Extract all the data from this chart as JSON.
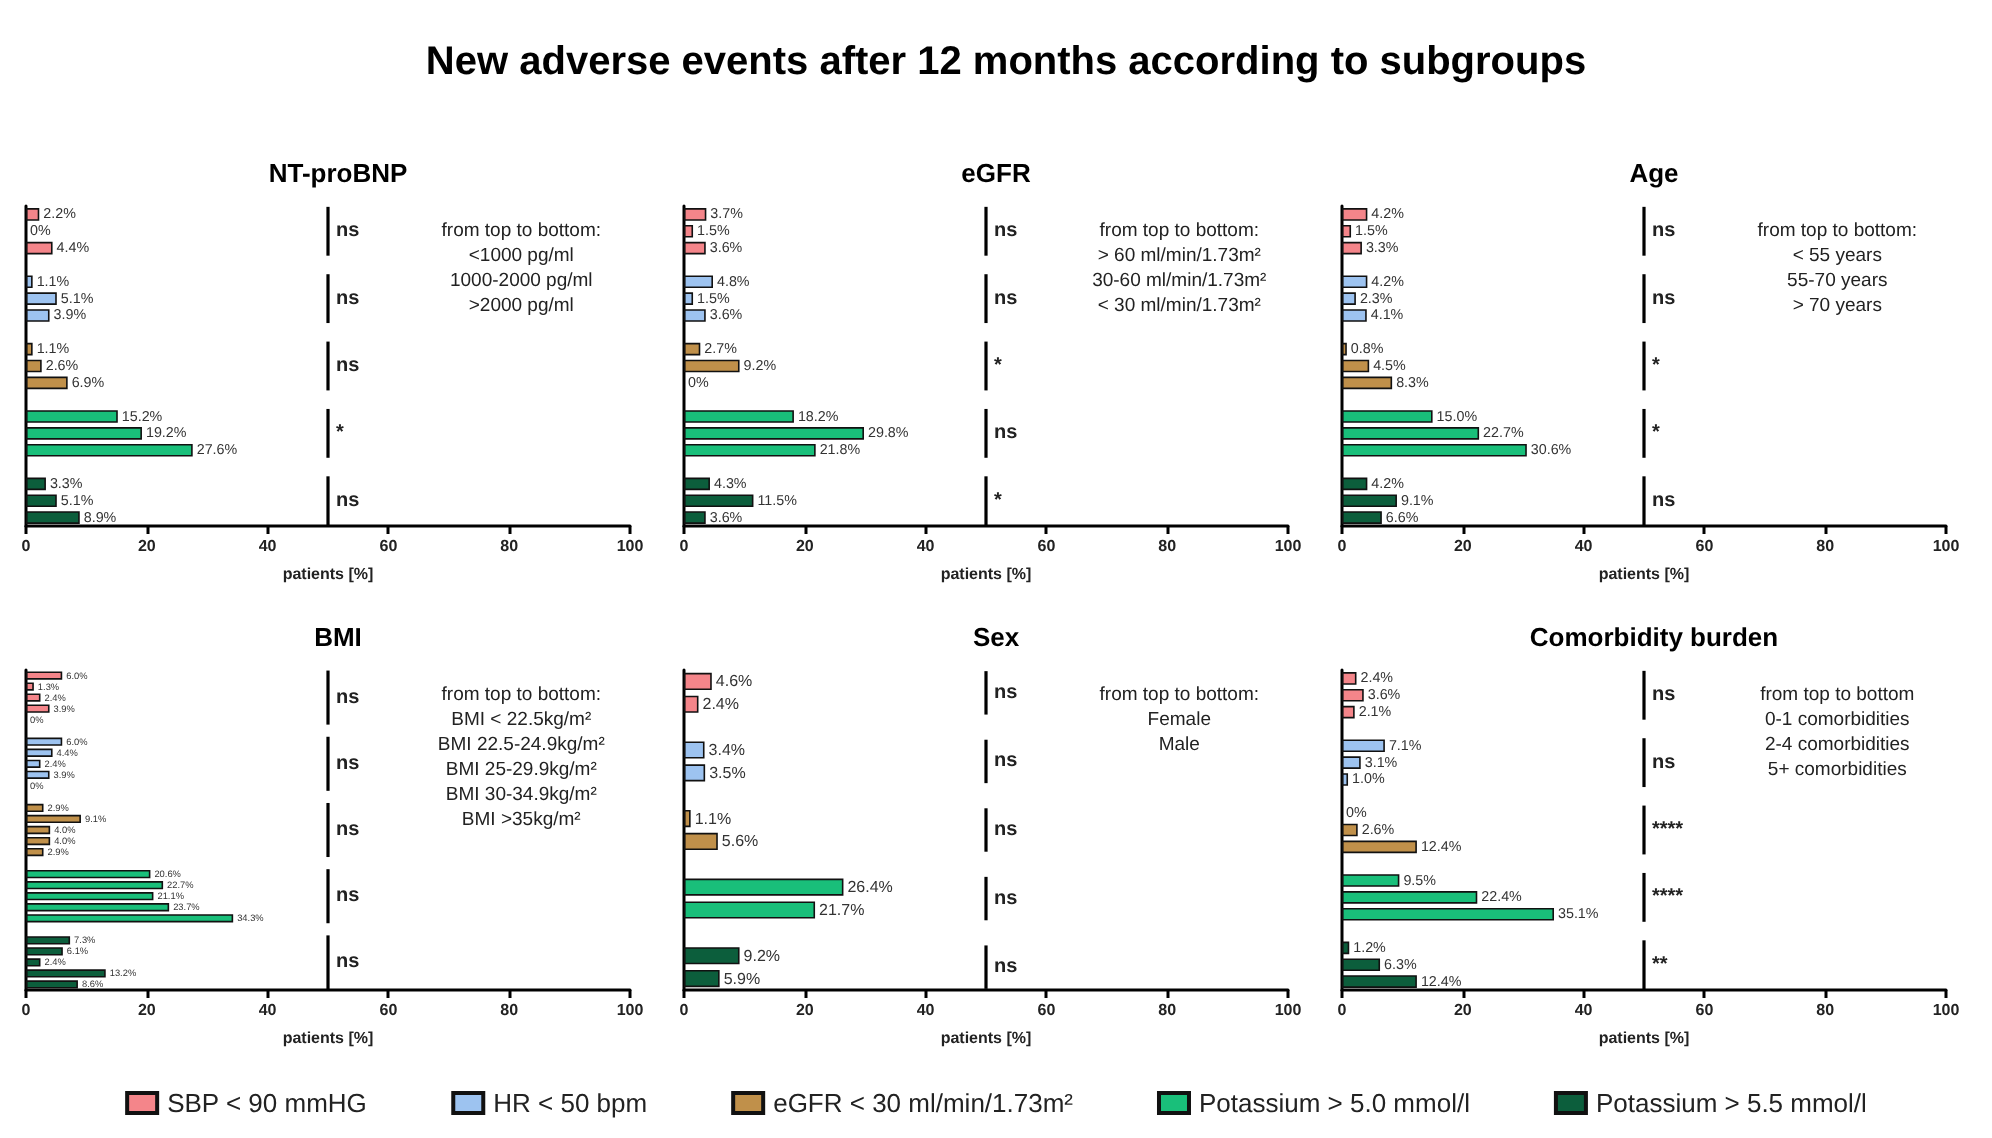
{
  "chart_data": [
    {
      "type": "bar",
      "orientation": "horizontal",
      "title": "New adverse events after 12 months according to subgroups",
      "subtitle": "NT-proBNP",
      "xlabel": "patients [%]",
      "xlim": [
        0,
        100
      ],
      "xticks": [
        0,
        20,
        40,
        60,
        80,
        100
      ],
      "tick_labels": "x",
      "categories": [
        null,
        null,
        null,
        null,
        null,
        null,
        null,
        null,
        null,
        null,
        null,
        null,
        null,
        null,
        null,
        null,
        null,
        null,
        null
      ],
      "series": [
        {
          "color": "#f4858a",
          "values": [
            2.2,
            0,
            4.4,
            null,
            null,
            null,
            null,
            null,
            null,
            null,
            null,
            null,
            null,
            null,
            null,
            null,
            null,
            null,
            null
          ],
          "value_labels": [
            "2.2%",
            "0%",
            "4.4%",
            null,
            null,
            null,
            null,
            null,
            null,
            null,
            null,
            null,
            null,
            null,
            null,
            null,
            null,
            null,
            null
          ]
        },
        {
          "color": "#9dc3f0",
          "values": [
            null,
            null,
            null,
            null,
            1.1,
            5.1,
            3.9,
            null,
            null,
            null,
            null,
            null,
            null,
            null,
            null,
            null,
            null,
            null,
            null
          ],
          "value_labels": [
            null,
            null,
            null,
            null,
            "1.1%",
            "5.1%",
            "3.9%",
            null,
            null,
            null,
            null,
            null,
            null,
            null,
            null,
            null,
            null,
            null,
            null
          ]
        },
        {
          "color": "#c0904a",
          "values": [
            null,
            null,
            null,
            null,
            null,
            null,
            null,
            null,
            1.1,
            2.6,
            6.9,
            null,
            null,
            null,
            null,
            null,
            null,
            null,
            null
          ],
          "value_labels": [
            null,
            null,
            null,
            null,
            null,
            null,
            null,
            null,
            "1.1%",
            "2.6%",
            "6.9%",
            null,
            null,
            null,
            null,
            null,
            null,
            null,
            null
          ]
        },
        {
          "color": "#19bf7a",
          "values": [
            null,
            null,
            null,
            null,
            null,
            null,
            null,
            null,
            null,
            null,
            null,
            null,
            15.2,
            19.2,
            27.6,
            null,
            null,
            null,
            null
          ],
          "value_labels": [
            null,
            null,
            null,
            null,
            null,
            null,
            null,
            null,
            null,
            null,
            null,
            null,
            "15.2%",
            "19.2%",
            "27.6%",
            null,
            null,
            null,
            null
          ]
        },
        {
          "color": "#0c5e3c",
          "values": [
            null,
            null,
            null,
            null,
            null,
            null,
            null,
            null,
            null,
            null,
            null,
            null,
            null,
            null,
            null,
            null,
            3.3,
            5.1,
            8.9
          ],
          "value_labels": [
            null,
            null,
            null,
            null,
            null,
            null,
            null,
            null,
            null,
            null,
            null,
            null,
            null,
            null,
            null,
            null,
            "3.3%",
            "5.1%",
            "8.9%"
          ]
        }
      ],
      "annotations": [
        "from top to bottom:\n<1000 pg/ml\n1000-2000 pg/ml\n>2000 pg/ml",
        "ns",
        "ns",
        "ns",
        "*",
        "ns"
      ]
    },
    {
      "type": "bar",
      "orientation": "horizontal",
      "title": "eGFR",
      "xlabel": "patients [%]",
      "xlim": [
        0,
        100
      ],
      "xticks": [
        0,
        20,
        40,
        60,
        80,
        100
      ],
      "tick_labels": "x",
      "categories": [
        null,
        null,
        null,
        null,
        null,
        null,
        null,
        null,
        null,
        null,
        null,
        null,
        null,
        null,
        null,
        null,
        null,
        null,
        null
      ],
      "series": [
        {
          "color": "#f4858a",
          "values": [
            3.7,
            1.5,
            3.6,
            null,
            null,
            null,
            null,
            null,
            null,
            null,
            null,
            null,
            null,
            null,
            null,
            null,
            null,
            null,
            null
          ],
          "value_labels": [
            "3.7%",
            "1.5%",
            "3.6%",
            null,
            null,
            null,
            null,
            null,
            null,
            null,
            null,
            null,
            null,
            null,
            null,
            null,
            null,
            null,
            null
          ]
        },
        {
          "color": "#9dc3f0",
          "values": [
            null,
            null,
            null,
            null,
            4.8,
            1.5,
            3.6,
            null,
            null,
            null,
            null,
            null,
            null,
            null,
            null,
            null,
            null,
            null,
            null
          ],
          "value_labels": [
            null,
            null,
            null,
            null,
            "4.8%",
            "1.5%",
            "3.6%",
            null,
            null,
            null,
            null,
            null,
            null,
            null,
            null,
            null,
            null,
            null,
            null
          ]
        },
        {
          "color": "#c0904a",
          "values": [
            null,
            null,
            null,
            null,
            null,
            null,
            null,
            null,
            2.7,
            9.2,
            0,
            null,
            null,
            null,
            null,
            null,
            null,
            null,
            null
          ],
          "value_labels": [
            null,
            null,
            null,
            null,
            null,
            null,
            null,
            null,
            "2.7%",
            "9.2%",
            "0%",
            null,
            null,
            null,
            null,
            null,
            null,
            null,
            null
          ]
        },
        {
          "color": "#19bf7a",
          "values": [
            null,
            null,
            null,
            null,
            null,
            null,
            null,
            null,
            null,
            null,
            null,
            null,
            18.2,
            29.8,
            21.8,
            null,
            null,
            null,
            null
          ],
          "value_labels": [
            null,
            null,
            null,
            null,
            null,
            null,
            null,
            null,
            null,
            null,
            null,
            null,
            "18.2%",
            "29.8%",
            "21.8%",
            null,
            null,
            null,
            null
          ]
        },
        {
          "color": "#0c5e3c",
          "values": [
            null,
            null,
            null,
            null,
            null,
            null,
            null,
            null,
            null,
            null,
            null,
            null,
            null,
            null,
            null,
            null,
            4.3,
            11.5,
            3.6
          ],
          "value_labels": [
            null,
            null,
            null,
            null,
            null,
            null,
            null,
            null,
            null,
            null,
            null,
            null,
            null,
            null,
            null,
            null,
            "4.3%",
            "11.5%",
            "3.6%"
          ]
        }
      ],
      "annotations": [
        "from top to bottom:\n> 60 ml/min/1.73m²\n30-60 ml/min/1.73m²\n< 30 ml/min/1.73m²",
        "ns",
        "ns",
        "*",
        "ns",
        "*"
      ]
    },
    {
      "type": "bar",
      "orientation": "horizontal",
      "title": "Age",
      "xlabel": "patients [%]",
      "xlim": [
        0,
        100
      ],
      "xticks": [
        0,
        20,
        40,
        60,
        80,
        100
      ],
      "tick_labels": "x",
      "categories": [
        null,
        null,
        null,
        null,
        null,
        null,
        null,
        null,
        null,
        null,
        null,
        null,
        null,
        null,
        null,
        null,
        null,
        null,
        null
      ],
      "series": [
        {
          "color": "#f4858a",
          "values": [
            4.2,
            1.5,
            3.3,
            null,
            null,
            null,
            null,
            null,
            null,
            null,
            null,
            null,
            null,
            null,
            null,
            null,
            null,
            null,
            null
          ],
          "value_labels": [
            "4.2%",
            "1.5%",
            "3.3%",
            null,
            null,
            null,
            null,
            null,
            null,
            null,
            null,
            null,
            null,
            null,
            null,
            null,
            null,
            null,
            null
          ]
        },
        {
          "color": "#9dc3f0",
          "values": [
            null,
            null,
            null,
            null,
            4.2,
            2.3,
            4.1,
            null,
            null,
            null,
            null,
            null,
            null,
            null,
            null,
            null,
            null,
            null,
            null
          ],
          "value_labels": [
            null,
            null,
            null,
            null,
            "4.2%",
            "2.3%",
            "4.1%",
            null,
            null,
            null,
            null,
            null,
            null,
            null,
            null,
            null,
            null,
            null,
            null
          ]
        },
        {
          "color": "#c0904a",
          "values": [
            null,
            null,
            null,
            null,
            null,
            null,
            null,
            null,
            0.8,
            4.5,
            8.3,
            null,
            null,
            null,
            null,
            null,
            null,
            null,
            null
          ],
          "value_labels": [
            null,
            null,
            null,
            null,
            null,
            null,
            null,
            null,
            "0.8%",
            "4.5%",
            "8.3%",
            null,
            null,
            null,
            null,
            null,
            null,
            null,
            null
          ]
        },
        {
          "color": "#19bf7a",
          "values": [
            null,
            null,
            null,
            null,
            null,
            null,
            null,
            null,
            null,
            null,
            null,
            null,
            15.0,
            22.7,
            30.6,
            null,
            null,
            null,
            null
          ],
          "value_labels": [
            null,
            null,
            null,
            null,
            null,
            null,
            null,
            null,
            null,
            null,
            null,
            null,
            "15.0%",
            "22.7%",
            "30.6%",
            null,
            null,
            null,
            null
          ]
        },
        {
          "color": "#0c5e3c",
          "values": [
            null,
            null,
            null,
            null,
            null,
            null,
            null,
            null,
            null,
            null,
            null,
            null,
            null,
            null,
            null,
            null,
            4.2,
            9.1,
            6.6
          ],
          "value_labels": [
            null,
            null,
            null,
            null,
            null,
            null,
            null,
            null,
            null,
            null,
            null,
            null,
            null,
            null,
            null,
            null,
            "4.2%",
            "9.1%",
            "6.6%"
          ]
        }
      ],
      "annotations": [
        "from top to bottom:\n< 55 years\n55-70 years\n> 70 years",
        "ns",
        "ns",
        "*",
        "*",
        "ns"
      ]
    },
    {
      "type": "bar",
      "orientation": "horizontal",
      "title": "BMI",
      "xlabel": "patients [%]",
      "xlim": [
        0,
        100
      ],
      "xticks": [
        0,
        20,
        40,
        60,
        80,
        100
      ],
      "tick_labels": "x",
      "categories": [
        null,
        null,
        null,
        null,
        null,
        null,
        null,
        null,
        null,
        null,
        null,
        null,
        null,
        null,
        null,
        null,
        null,
        null,
        null,
        null,
        null,
        null,
        null,
        null,
        null,
        null,
        null,
        null,
        null
      ],
      "series": [
        {
          "color": "#f4858a",
          "values": [
            6.0,
            1.3,
            2.4,
            3.9,
            0,
            null,
            null,
            null,
            null,
            null,
            null,
            null,
            null,
            null,
            null,
            null,
            null,
            null,
            null,
            null,
            null,
            null,
            null,
            null,
            null,
            null,
            null,
            null,
            null
          ],
          "value_labels": [
            "6.0%",
            "1.3%",
            "2.4%",
            "3.9%",
            "0%",
            null,
            null,
            null,
            null,
            null,
            null,
            null,
            null,
            null,
            null,
            null,
            null,
            null,
            null,
            null,
            null,
            null,
            null,
            null,
            null,
            null,
            null,
            null,
            null
          ]
        },
        {
          "color": "#9dc3f0",
          "values": [
            null,
            null,
            null,
            null,
            null,
            null,
            6.0,
            4.4,
            2.4,
            3.9,
            0,
            null,
            null,
            null,
            null,
            null,
            null,
            null,
            null,
            null,
            null,
            null,
            null,
            null,
            null,
            null,
            null,
            null,
            null
          ],
          "value_labels": [
            null,
            null,
            null,
            null,
            null,
            null,
            "6.0%",
            "4.4%",
            "2.4%",
            "3.9%",
            "0%",
            null,
            null,
            null,
            null,
            null,
            null,
            null,
            null,
            null,
            null,
            null,
            null,
            null,
            null,
            null,
            null,
            null,
            null
          ]
        },
        {
          "color": "#c0904a",
          "values": [
            null,
            null,
            null,
            null,
            null,
            null,
            null,
            null,
            null,
            null,
            null,
            null,
            2.9,
            9.1,
            4.0,
            4.0,
            2.9,
            null,
            null,
            null,
            null,
            null,
            null,
            null,
            null,
            null,
            null,
            null,
            null
          ],
          "value_labels": [
            null,
            null,
            null,
            null,
            null,
            null,
            null,
            null,
            null,
            null,
            null,
            null,
            "2.9%",
            "9.1%",
            "4.0%",
            "4.0%",
            "2.9%",
            null,
            null,
            null,
            null,
            null,
            null,
            null,
            null,
            null,
            null,
            null,
            null
          ]
        },
        {
          "color": "#19bf7a",
          "values": [
            null,
            null,
            null,
            null,
            null,
            null,
            null,
            null,
            null,
            null,
            null,
            null,
            null,
            null,
            null,
            null,
            null,
            null,
            20.6,
            22.7,
            21.1,
            23.7,
            34.3,
            null,
            null,
            null,
            null,
            null,
            null
          ],
          "value_labels": [
            null,
            null,
            null,
            null,
            null,
            null,
            null,
            null,
            null,
            null,
            null,
            null,
            null,
            null,
            null,
            null,
            null,
            null,
            "20.6%",
            "22.7%",
            "21.1%",
            "23.7%",
            "34.3%",
            null,
            null,
            null,
            null,
            null,
            null
          ]
        },
        {
          "color": "#0c5e3c",
          "values": [
            null,
            null,
            null,
            null,
            null,
            null,
            null,
            null,
            null,
            null,
            null,
            null,
            null,
            null,
            null,
            null,
            null,
            null,
            null,
            null,
            null,
            null,
            null,
            null,
            7.3,
            6.1,
            2.4,
            13.2,
            8.6
          ],
          "value_labels": [
            null,
            null,
            null,
            null,
            null,
            null,
            null,
            null,
            null,
            null,
            null,
            null,
            null,
            null,
            null,
            null,
            null,
            null,
            null,
            null,
            null,
            null,
            null,
            null,
            "7.3%",
            "6.1%",
            "2.4%",
            "13.2%",
            "8.6%"
          ]
        }
      ],
      "annotations": [
        "from top to bottom:\nBMI < 22.5kg/m²\nBMI 22.5-24.9kg/m²\nBMI 25-29.9kg/m²\nBMI 30-34.9kg/m²\nBMI >35kg/m²",
        "ns",
        "ns",
        "ns",
        "ns",
        "ns"
      ]
    },
    {
      "type": "bar",
      "orientation": "horizontal",
      "title": "Sex",
      "xlabel": "patients [%]",
      "xlim": [
        0,
        100
      ],
      "xticks": [
        0,
        20,
        40,
        60,
        80,
        100
      ],
      "tick_labels": "x",
      "categories": [
        null,
        null,
        null,
        null,
        null,
        null,
        null,
        null,
        null,
        null,
        null,
        null,
        null,
        null
      ],
      "series": [
        {
          "color": "#f4858a",
          "values": [
            4.6,
            2.4,
            null,
            null,
            null,
            null,
            null,
            null,
            null,
            null,
            null,
            null,
            null,
            null
          ],
          "value_labels": [
            "4.6%",
            "2.4%",
            null,
            null,
            null,
            null,
            null,
            null,
            null,
            null,
            null,
            null,
            null,
            null
          ]
        },
        {
          "color": "#9dc3f0",
          "values": [
            null,
            null,
            null,
            3.4,
            3.5,
            null,
            null,
            null,
            null,
            null,
            null,
            null,
            null,
            null
          ],
          "value_labels": [
            null,
            null,
            null,
            "3.4%",
            "3.5%",
            null,
            null,
            null,
            null,
            null,
            null,
            null,
            null,
            null
          ]
        },
        {
          "color": "#c0904a",
          "values": [
            null,
            null,
            null,
            null,
            null,
            null,
            1.1,
            5.6,
            null,
            null,
            null,
            null,
            null,
            null
          ],
          "value_labels": [
            null,
            null,
            null,
            null,
            null,
            null,
            "1.1%",
            "5.6%",
            null,
            null,
            null,
            null,
            null,
            null
          ]
        },
        {
          "color": "#19bf7a",
          "values": [
            null,
            null,
            null,
            null,
            null,
            null,
            null,
            null,
            null,
            26.4,
            21.7,
            null,
            null,
            null
          ],
          "value_labels": [
            null,
            null,
            null,
            null,
            null,
            null,
            null,
            null,
            null,
            "26.4%",
            "21.7%",
            null,
            null,
            null
          ]
        },
        {
          "color": "#0c5e3c",
          "values": [
            null,
            null,
            null,
            null,
            null,
            null,
            null,
            null,
            null,
            null,
            null,
            null,
            9.2,
            5.9
          ],
          "value_labels": [
            null,
            null,
            null,
            null,
            null,
            null,
            null,
            null,
            null,
            null,
            null,
            null,
            "9.2%",
            "5.9%"
          ]
        }
      ],
      "annotations": [
        "from top to bottom:\nFemale\nMale",
        "ns",
        "ns",
        "ns",
        "ns",
        "ns"
      ]
    },
    {
      "type": "bar",
      "orientation": "horizontal",
      "title": "Comorbidity burden",
      "xlabel": "patients [%]",
      "xlim": [
        0,
        100
      ],
      "xticks": [
        0,
        20,
        40,
        60,
        80,
        100
      ],
      "tick_labels": "x",
      "legend": "bottom",
      "categories": [
        null,
        null,
        null,
        null,
        null,
        null,
        null,
        null,
        null,
        null,
        null,
        null,
        null,
        null,
        null,
        null,
        null,
        null,
        null
      ],
      "series": [
        {
          "name": "SBP < 90 mmHG",
          "color": "#f4858a",
          "values": [
            2.4,
            3.6,
            2.1,
            null,
            null,
            null,
            null,
            null,
            null,
            null,
            null,
            null,
            null,
            null,
            null,
            null,
            null,
            null,
            null
          ],
          "value_labels": [
            "2.4%",
            "3.6%",
            "2.1%",
            null,
            null,
            null,
            null,
            null,
            null,
            null,
            null,
            null,
            null,
            null,
            null,
            null,
            null,
            null,
            null
          ]
        },
        {
          "name": "HR < 50 bpm",
          "color": "#9dc3f0",
          "values": [
            null,
            null,
            null,
            null,
            7.1,
            3.1,
            1.0,
            null,
            null,
            null,
            null,
            null,
            null,
            null,
            null,
            null,
            null,
            null,
            null
          ],
          "value_labels": [
            null,
            null,
            null,
            null,
            "7.1%",
            "3.1%",
            "1.0%",
            null,
            null,
            null,
            null,
            null,
            null,
            null,
            null,
            null,
            null,
            null,
            null
          ]
        },
        {
          "name": "eGFR < 30 ml/min/1.73m²",
          "color": "#c0904a",
          "values": [
            null,
            null,
            null,
            null,
            null,
            null,
            null,
            null,
            0,
            2.6,
            12.4,
            null,
            null,
            null,
            null,
            null,
            null,
            null,
            null
          ],
          "value_labels": [
            null,
            null,
            null,
            null,
            null,
            null,
            null,
            null,
            "0%",
            "2.6%",
            "12.4%",
            null,
            null,
            null,
            null,
            null,
            null,
            null,
            null
          ]
        },
        {
          "name": "Potassium > 5.0 mmol/l",
          "color": "#19bf7a",
          "values": [
            null,
            null,
            null,
            null,
            null,
            null,
            null,
            null,
            null,
            null,
            null,
            null,
            9.5,
            22.4,
            35.1,
            null,
            null,
            null,
            null
          ],
          "value_labels": [
            null,
            null,
            null,
            null,
            null,
            null,
            null,
            null,
            null,
            null,
            null,
            null,
            "9.5%",
            "22.4%",
            "35.1%",
            null,
            null,
            null,
            null
          ]
        },
        {
          "name": "Potassium > 5.5 mmol/l",
          "color": "#0c5e3c",
          "values": [
            null,
            null,
            null,
            null,
            null,
            null,
            null,
            null,
            null,
            null,
            null,
            null,
            null,
            null,
            null,
            null,
            1.2,
            6.3,
            12.4
          ],
          "value_labels": [
            null,
            null,
            null,
            null,
            null,
            null,
            null,
            null,
            null,
            null,
            null,
            null,
            null,
            null,
            null,
            null,
            "1.2%",
            "6.3%",
            "12.4%"
          ]
        }
      ],
      "annotations": [
        "from top to bottom\n0-1 comorbidities\n2-4 comorbidities\n5+ comorbidities",
        "ns",
        "ns",
        "****",
        "****",
        "**"
      ]
    }
  ]
}
